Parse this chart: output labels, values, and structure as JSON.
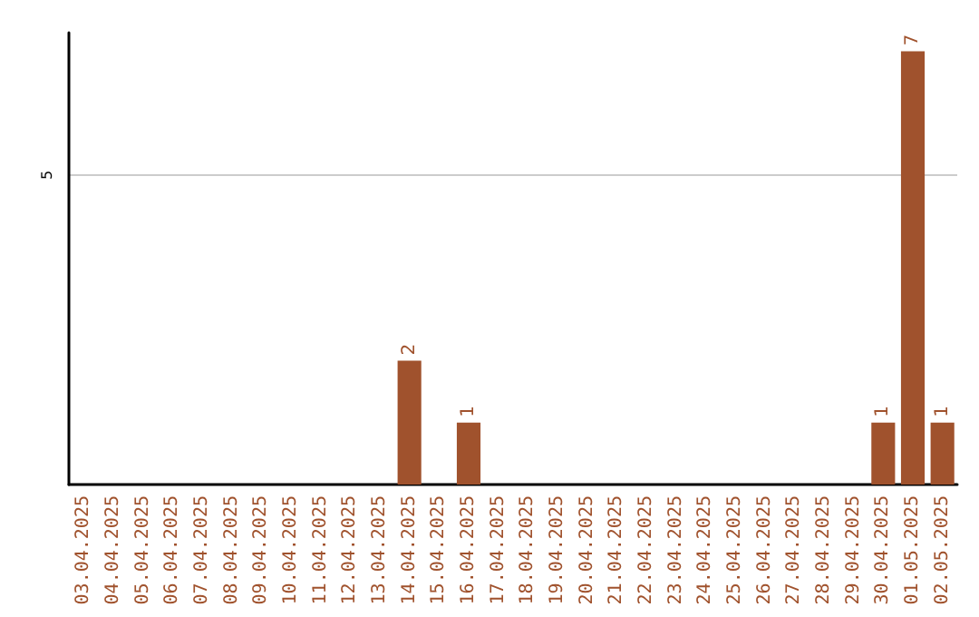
{
  "chart_data": {
    "type": "bar",
    "categories": [
      "03.04.2025",
      "04.04.2025",
      "05.04.2025",
      "06.04.2025",
      "07.04.2025",
      "08.04.2025",
      "09.04.2025",
      "10.04.2025",
      "11.04.2025",
      "12.04.2025",
      "13.04.2025",
      "14.04.2025",
      "15.04.2025",
      "16.04.2025",
      "17.04.2025",
      "18.04.2025",
      "19.04.2025",
      "20.04.2025",
      "21.04.2025",
      "22.04.2025",
      "23.04.2025",
      "24.04.2025",
      "25.04.2025",
      "26.04.2025",
      "27.04.2025",
      "28.04.2025",
      "29.04.2025",
      "30.04.2025",
      "01.05.2025",
      "02.05.2025"
    ],
    "values": [
      0,
      0,
      0,
      0,
      0,
      0,
      0,
      0,
      0,
      0,
      0,
      2,
      0,
      1,
      0,
      0,
      0,
      0,
      0,
      0,
      0,
      0,
      0,
      0,
      0,
      0,
      0,
      1,
      7,
      1
    ],
    "value_labels": [
      null,
      null,
      null,
      null,
      null,
      null,
      null,
      null,
      null,
      null,
      null,
      "2",
      null,
      "1",
      null,
      null,
      null,
      null,
      null,
      null,
      null,
      null,
      null,
      null,
      null,
      null,
      null,
      "1",
      "7",
      "1"
    ],
    "color": "#a0522d",
    "ylim": [
      0,
      7.3
    ],
    "yticks": [
      5
    ],
    "grid": "y"
  }
}
